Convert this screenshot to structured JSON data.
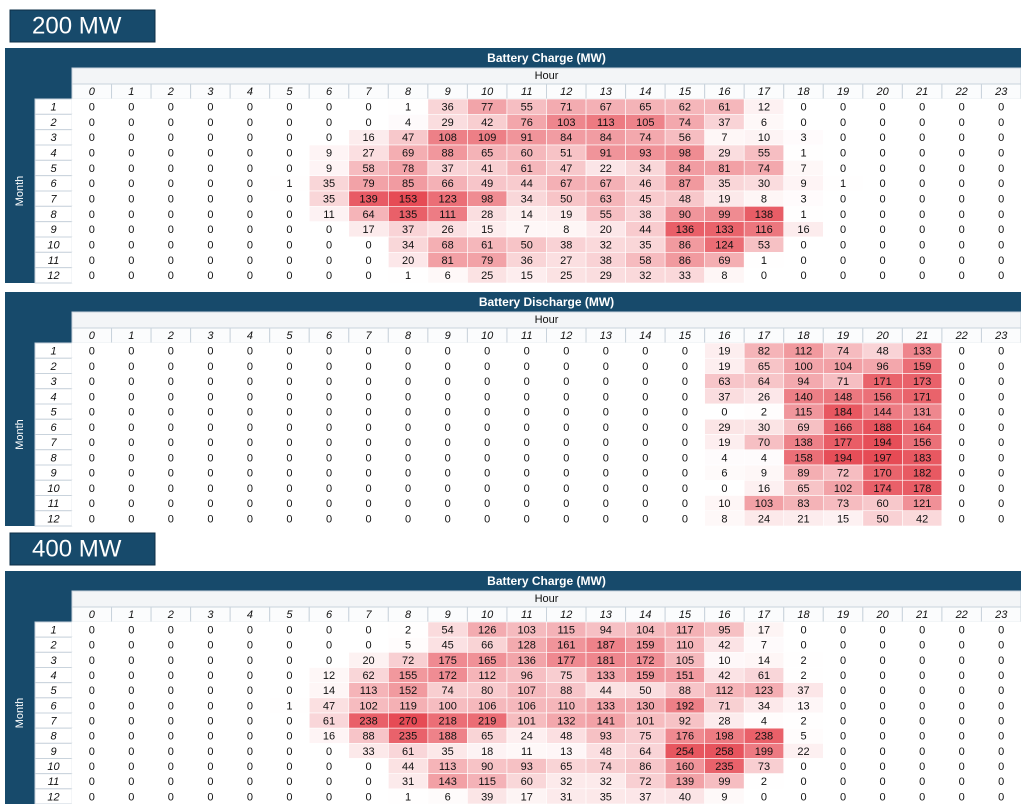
{
  "banners": [
    "200 MW",
    "400 MW"
  ],
  "tables": [
    {
      "title": "Battery Charge (MW)",
      "column_label": "Hour",
      "row_label": "Month",
      "hours": [
        0,
        1,
        2,
        3,
        4,
        5,
        6,
        7,
        8,
        9,
        10,
        11,
        12,
        13,
        14,
        15,
        16,
        17,
        18,
        19,
        20,
        21,
        22,
        23
      ],
      "months": [
        1,
        2,
        3,
        4,
        5,
        6,
        7,
        8,
        9,
        10,
        11,
        12
      ],
      "rows": [
        [
          0,
          0,
          0,
          0,
          0,
          0,
          0,
          0,
          1,
          36,
          77,
          55,
          71,
          67,
          65,
          62,
          61,
          12,
          0,
          0,
          0,
          0,
          0,
          0
        ],
        [
          0,
          0,
          0,
          0,
          0,
          0,
          0,
          0,
          4,
          29,
          42,
          76,
          103,
          113,
          105,
          74,
          37,
          6,
          0,
          0,
          0,
          0,
          0,
          0
        ],
        [
          0,
          0,
          0,
          0,
          0,
          0,
          0,
          16,
          47,
          108,
          109,
          91,
          84,
          84,
          74,
          56,
          7,
          10,
          3,
          0,
          0,
          0,
          0,
          0
        ],
        [
          0,
          0,
          0,
          0,
          0,
          0,
          9,
          27,
          69,
          88,
          65,
          60,
          51,
          91,
          93,
          98,
          29,
          55,
          1,
          0,
          0,
          0,
          0,
          0
        ],
        [
          0,
          0,
          0,
          0,
          0,
          0,
          9,
          58,
          78,
          37,
          41,
          61,
          47,
          22,
          34,
          84,
          81,
          74,
          7,
          0,
          0,
          0,
          0,
          0
        ],
        [
          0,
          0,
          0,
          0,
          0,
          1,
          35,
          79,
          85,
          66,
          49,
          44,
          67,
          67,
          46,
          87,
          35,
          30,
          9,
          1,
          0,
          0,
          0,
          0
        ],
        [
          0,
          0,
          0,
          0,
          0,
          0,
          35,
          139,
          153,
          123,
          98,
          34,
          50,
          63,
          45,
          48,
          19,
          8,
          3,
          0,
          0,
          0,
          0,
          0
        ],
        [
          0,
          0,
          0,
          0,
          0,
          0,
          11,
          64,
          135,
          111,
          28,
          14,
          19,
          55,
          38,
          90,
          99,
          138,
          1,
          0,
          0,
          0,
          0,
          0
        ],
        [
          0,
          0,
          0,
          0,
          0,
          0,
          0,
          17,
          37,
          26,
          15,
          7,
          8,
          20,
          44,
          136,
          133,
          116,
          16,
          0,
          0,
          0,
          0,
          0
        ],
        [
          0,
          0,
          0,
          0,
          0,
          0,
          0,
          0,
          34,
          68,
          61,
          50,
          38,
          32,
          35,
          86,
          124,
          53,
          0,
          0,
          0,
          0,
          0,
          0
        ],
        [
          0,
          0,
          0,
          0,
          0,
          0,
          0,
          0,
          20,
          81,
          79,
          36,
          27,
          38,
          58,
          86,
          69,
          1,
          0,
          0,
          0,
          0,
          0,
          0
        ],
        [
          0,
          0,
          0,
          0,
          0,
          0,
          0,
          0,
          1,
          6,
          25,
          15,
          25,
          29,
          32,
          33,
          8,
          0,
          0,
          0,
          0,
          0,
          0,
          0
        ]
      ]
    },
    {
      "title": "Battery Discharge (MW)",
      "column_label": "Hour",
      "row_label": "Month",
      "hours": [
        0,
        1,
        2,
        3,
        4,
        5,
        6,
        7,
        8,
        9,
        10,
        11,
        12,
        13,
        14,
        15,
        16,
        17,
        18,
        19,
        20,
        21,
        22,
        23
      ],
      "months": [
        1,
        2,
        3,
        4,
        5,
        6,
        7,
        8,
        9,
        10,
        11,
        12
      ],
      "rows": [
        [
          0,
          0,
          0,
          0,
          0,
          0,
          0,
          0,
          0,
          0,
          0,
          0,
          0,
          0,
          0,
          0,
          19,
          82,
          112,
          74,
          48,
          133,
          0,
          0
        ],
        [
          0,
          0,
          0,
          0,
          0,
          0,
          0,
          0,
          0,
          0,
          0,
          0,
          0,
          0,
          0,
          0,
          19,
          65,
          100,
          104,
          96,
          159,
          0,
          0
        ],
        [
          0,
          0,
          0,
          0,
          0,
          0,
          0,
          0,
          0,
          0,
          0,
          0,
          0,
          0,
          0,
          0,
          63,
          64,
          94,
          71,
          171,
          173,
          0,
          0
        ],
        [
          0,
          0,
          0,
          0,
          0,
          0,
          0,
          0,
          0,
          0,
          0,
          0,
          0,
          0,
          0,
          0,
          37,
          26,
          140,
          148,
          156,
          171,
          0,
          0
        ],
        [
          0,
          0,
          0,
          0,
          0,
          0,
          0,
          0,
          0,
          0,
          0,
          0,
          0,
          0,
          0,
          0,
          0,
          2,
          115,
          184,
          144,
          131,
          0,
          0
        ],
        [
          0,
          0,
          0,
          0,
          0,
          0,
          0,
          0,
          0,
          0,
          0,
          0,
          0,
          0,
          0,
          0,
          29,
          30,
          69,
          166,
          188,
          164,
          0,
          0
        ],
        [
          0,
          0,
          0,
          0,
          0,
          0,
          0,
          0,
          0,
          0,
          0,
          0,
          0,
          0,
          0,
          0,
          19,
          70,
          138,
          177,
          194,
          156,
          0,
          0
        ],
        [
          0,
          0,
          0,
          0,
          0,
          0,
          0,
          0,
          0,
          0,
          0,
          0,
          0,
          0,
          0,
          0,
          4,
          4,
          158,
          194,
          197,
          183,
          0,
          0
        ],
        [
          0,
          0,
          0,
          0,
          0,
          0,
          0,
          0,
          0,
          0,
          0,
          0,
          0,
          0,
          0,
          0,
          6,
          9,
          89,
          72,
          170,
          182,
          0,
          0
        ],
        [
          0,
          0,
          0,
          0,
          0,
          0,
          0,
          0,
          0,
          0,
          0,
          0,
          0,
          0,
          0,
          0,
          0,
          16,
          65,
          102,
          174,
          178,
          0,
          0
        ],
        [
          0,
          0,
          0,
          0,
          0,
          0,
          0,
          0,
          0,
          0,
          0,
          0,
          0,
          0,
          0,
          0,
          10,
          103,
          83,
          73,
          60,
          121,
          0,
          0
        ],
        [
          0,
          0,
          0,
          0,
          0,
          0,
          0,
          0,
          0,
          0,
          0,
          0,
          0,
          0,
          0,
          0,
          8,
          24,
          21,
          15,
          50,
          42,
          0,
          0
        ]
      ]
    },
    {
      "title": "Battery Charge (MW)",
      "column_label": "Hour",
      "row_label": "Month",
      "hours": [
        0,
        1,
        2,
        3,
        4,
        5,
        6,
        7,
        8,
        9,
        10,
        11,
        12,
        13,
        14,
        15,
        16,
        17,
        18,
        19,
        20,
        21,
        22,
        23
      ],
      "months": [
        1,
        2,
        3,
        4,
        5,
        6,
        7,
        8,
        9,
        10,
        11,
        12
      ],
      "rows": [
        [
          0,
          0,
          0,
          0,
          0,
          0,
          0,
          0,
          2,
          54,
          126,
          103,
          115,
          94,
          104,
          117,
          95,
          17,
          0,
          0,
          0,
          0,
          0,
          0
        ],
        [
          0,
          0,
          0,
          0,
          0,
          0,
          0,
          0,
          5,
          45,
          66,
          128,
          161,
          187,
          159,
          110,
          42,
          7,
          0,
          0,
          0,
          0,
          0,
          0
        ],
        [
          0,
          0,
          0,
          0,
          0,
          0,
          0,
          20,
          72,
          175,
          165,
          136,
          177,
          181,
          172,
          105,
          10,
          14,
          2,
          0,
          0,
          0,
          0,
          0
        ],
        [
          0,
          0,
          0,
          0,
          0,
          0,
          12,
          62,
          155,
          172,
          112,
          96,
          75,
          133,
          159,
          151,
          42,
          61,
          2,
          0,
          0,
          0,
          0,
          0
        ],
        [
          0,
          0,
          0,
          0,
          0,
          0,
          14,
          113,
          152,
          74,
          80,
          107,
          88,
          44,
          50,
          88,
          112,
          123,
          37,
          0,
          0,
          0,
          0,
          0
        ],
        [
          0,
          0,
          0,
          0,
          0,
          1,
          47,
          102,
          119,
          100,
          106,
          106,
          110,
          133,
          130,
          192,
          71,
          34,
          13,
          0,
          0,
          0,
          0,
          0
        ],
        [
          0,
          0,
          0,
          0,
          0,
          0,
          61,
          238,
          270,
          218,
          219,
          101,
          132,
          141,
          101,
          92,
          28,
          4,
          2,
          0,
          0,
          0,
          0,
          0
        ],
        [
          0,
          0,
          0,
          0,
          0,
          0,
          16,
          88,
          235,
          188,
          65,
          24,
          48,
          93,
          75,
          176,
          198,
          238,
          5,
          0,
          0,
          0,
          0,
          0
        ],
        [
          0,
          0,
          0,
          0,
          0,
          0,
          0,
          33,
          61,
          35,
          18,
          11,
          13,
          48,
          64,
          254,
          258,
          199,
          22,
          0,
          0,
          0,
          0,
          0
        ],
        [
          0,
          0,
          0,
          0,
          0,
          0,
          0,
          0,
          44,
          113,
          90,
          93,
          65,
          74,
          86,
          160,
          235,
          73,
          0,
          0,
          0,
          0,
          0,
          0
        ],
        [
          0,
          0,
          0,
          0,
          0,
          0,
          0,
          0,
          31,
          143,
          115,
          60,
          32,
          32,
          72,
          139,
          99,
          2,
          0,
          0,
          0,
          0,
          0,
          0
        ],
        [
          0,
          0,
          0,
          0,
          0,
          0,
          0,
          0,
          1,
          6,
          39,
          17,
          31,
          35,
          37,
          40,
          9,
          0,
          0,
          0,
          0,
          0,
          0,
          0
        ]
      ]
    }
  ]
}
